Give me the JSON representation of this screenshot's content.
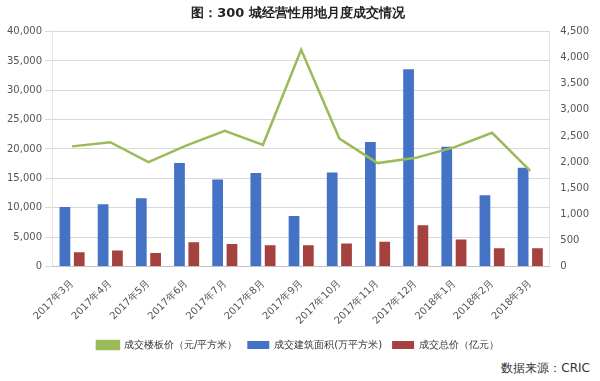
{
  "chart_data": {
    "type": "bar",
    "title": "图：300 城经营性用地月度成交情况",
    "annotation": "数据来源：CRIC",
    "categories": [
      "2017年3月",
      "2017年4月",
      "2017年5月",
      "2017年6月",
      "2017年7月",
      "2017年8月",
      "2017年9月",
      "2017年10月",
      "2017年11月",
      "2017年12月",
      "2018年1月",
      "2018年2月",
      "2018年3月"
    ],
    "series": [
      {
        "name": "成交建筑面积(万平方米)",
        "color": "#4472c4",
        "type": "bar",
        "values": [
          10100,
          10600,
          11600,
          17600,
          14800,
          15900,
          8600,
          16000,
          21200,
          33600,
          20400,
          12100,
          16800
        ]
      },
      {
        "name": "成交总价（亿元）",
        "color": "#a5413f",
        "type": "bar",
        "values": [
          2400,
          2700,
          2300,
          4100,
          3800,
          3600,
          3600,
          3900,
          4200,
          7000,
          4600,
          3100,
          3100
        ]
      },
      {
        "name": "成交楼板价（元/平方米）",
        "color": "#9bbb59",
        "type": "line",
        "axis": "y2",
        "values": [
          2300,
          2380,
          2000,
          2320,
          2600,
          2330,
          4150,
          2450,
          1980,
          2080,
          2280,
          2560,
          1830
        ]
      }
    ],
    "ylim": [
      0,
      40000
    ],
    "yticks": [
      0,
      5000,
      10000,
      15000,
      20000,
      25000,
      30000,
      35000,
      40000
    ],
    "y2lim": [
      0,
      4500
    ],
    "y2ticks": [
      0,
      500,
      1000,
      1500,
      2000,
      2500,
      3000,
      3500,
      4000,
      4500
    ],
    "grid": true,
    "legend": "bottom"
  }
}
